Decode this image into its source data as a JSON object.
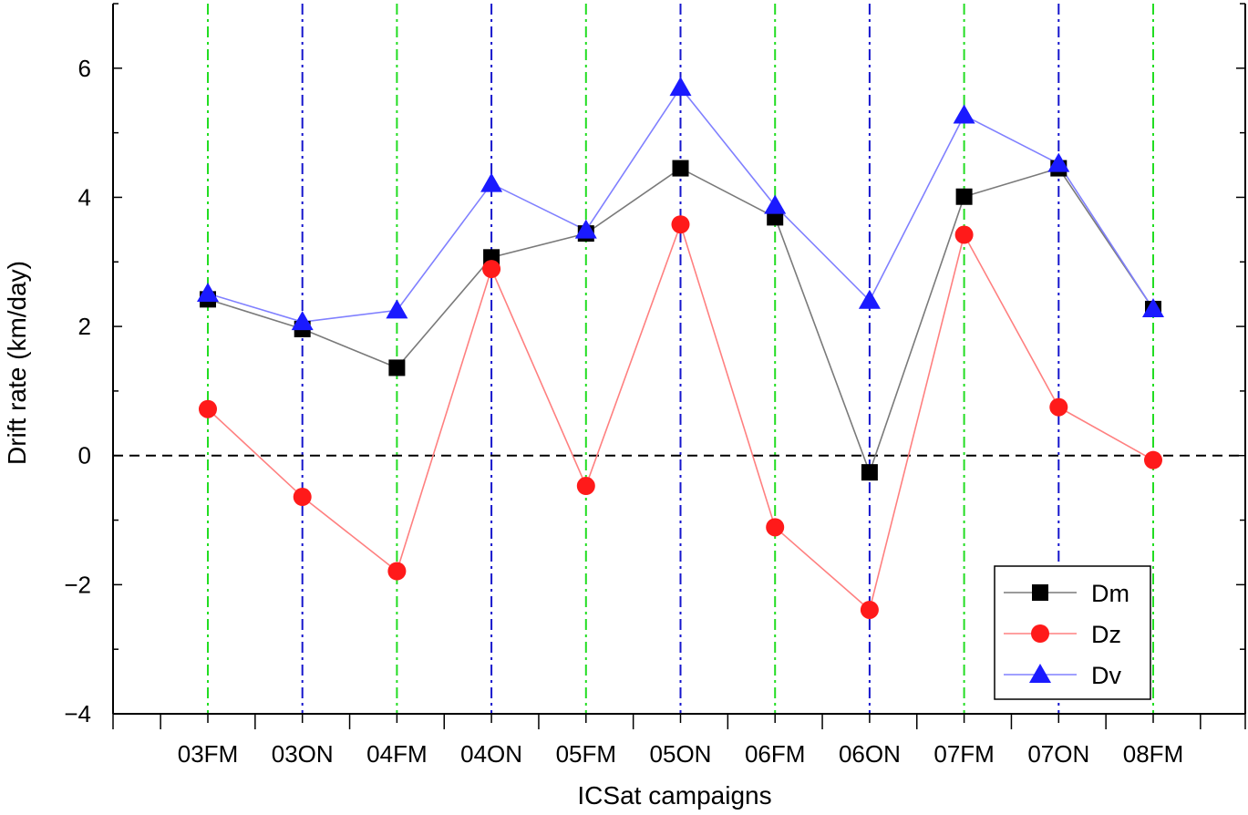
{
  "chart_data": {
    "type": "line",
    "title": "",
    "xlabel": "ICSat campaigns",
    "ylabel": "Drift rate (km/day)",
    "categories": [
      "03FM",
      "03ON",
      "04FM",
      "04ON",
      "05FM",
      "05ON",
      "06FM",
      "06ON",
      "07FM",
      "07ON",
      "08FM"
    ],
    "ylim": [
      -4,
      7
    ],
    "yticks": [
      -4,
      -2,
      0,
      2,
      4,
      6
    ],
    "ytick_labels": [
      "−4",
      "−2",
      "0",
      "2",
      "4",
      "6"
    ],
    "grid": false,
    "zero_line": {
      "value": 0,
      "style": "dashed",
      "color": "#000000"
    },
    "legend_position": "bottom-right",
    "vertical_marker_lines": [
      {
        "category": "03FM",
        "color": "#22dd22"
      },
      {
        "category": "03ON",
        "color": "#1515cc"
      },
      {
        "category": "04FM",
        "color": "#22dd22"
      },
      {
        "category": "04ON",
        "color": "#1515cc"
      },
      {
        "category": "05FM",
        "color": "#22dd22"
      },
      {
        "category": "05ON",
        "color": "#1515cc"
      },
      {
        "category": "06FM",
        "color": "#22dd22"
      },
      {
        "category": "06ON",
        "color": "#1515cc"
      },
      {
        "category": "07FM",
        "color": "#22dd22"
      },
      {
        "category": "07ON",
        "color": "#1515cc"
      },
      {
        "category": "08FM",
        "color": "#22dd22"
      }
    ],
    "series": [
      {
        "name": "Dm",
        "marker": "square",
        "color": "#000000",
        "line_color": "#7a7a7a",
        "values": [
          2.42,
          1.96,
          1.36,
          3.07,
          3.44,
          4.45,
          3.69,
          -0.26,
          4.01,
          4.45,
          2.27
        ]
      },
      {
        "name": "Dz",
        "marker": "circle",
        "color": "#ff1a1a",
        "line_color": "#ff8080",
        "values": [
          0.72,
          -0.64,
          -1.79,
          2.89,
          -0.47,
          3.58,
          -1.11,
          -2.39,
          3.42,
          0.75,
          -0.07
        ]
      },
      {
        "name": "Dv",
        "marker": "triangle",
        "color": "#1a1aff",
        "line_color": "#8080ff",
        "values": [
          2.51,
          2.07,
          2.25,
          4.21,
          3.49,
          5.7,
          3.87,
          2.4,
          5.27,
          4.52,
          2.27
        ]
      }
    ]
  }
}
